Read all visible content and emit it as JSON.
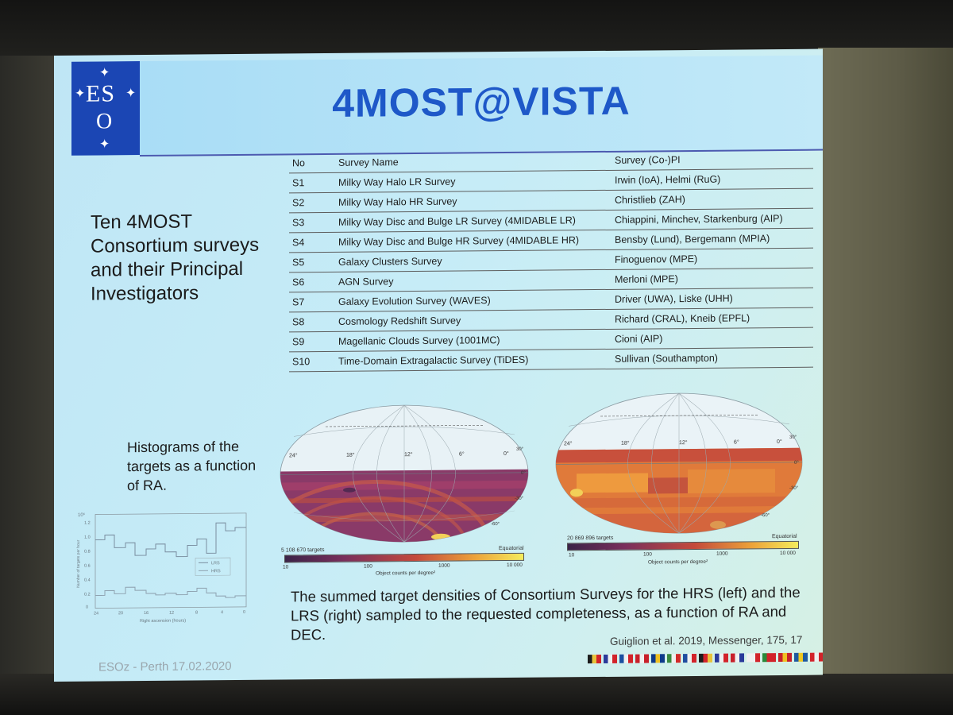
{
  "slide": {
    "title": "4MOST@VISTA",
    "logo": {
      "text_top": "ES",
      "text_bottom": "O"
    },
    "left_heading": "Ten 4MOST Consortium surveys and their Principal Investigators",
    "hist_caption": "Histograms of the targets as a function of RA.",
    "table": {
      "headers": [
        "No",
        "Survey Name",
        "Survey (Co-)PI"
      ],
      "rows": [
        [
          "S1",
          "Milky Way Halo LR Survey",
          "Irwin (IoA), Helmi (RuG)"
        ],
        [
          "S2",
          "Milky Way Halo HR Survey",
          "Christlieb (ZAH)"
        ],
        [
          "S3",
          "Milky Way Disc and Bulge LR Survey (4MIDABLE LR)",
          "Chiappini, Minchev, Starkenburg (AIP)"
        ],
        [
          "S4",
          "Milky Way Disc and Bulge HR Survey (4MIDABLE HR)",
          "Bensby (Lund), Bergemann (MPIA)"
        ],
        [
          "S5",
          "Galaxy Clusters Survey",
          "Finoguenov (MPE)"
        ],
        [
          "S6",
          "AGN Survey",
          "Merloni (MPE)"
        ],
        [
          "S7",
          "Galaxy Evolution Survey (WAVES)",
          "Driver (UWA), Liske (UHH)"
        ],
        [
          "S8",
          "Cosmology Redshift Survey",
          "Richard (CRAL), Kneib (EPFL)"
        ],
        [
          "S9",
          "Magellanic Clouds Survey (1001MC)",
          "Cioni (AIP)"
        ],
        [
          "S10",
          "Time-Domain Extragalactic Survey (TiDES)",
          "Sullivan (Southampton)"
        ]
      ]
    },
    "sky_maps": [
      {
        "targets": "5 108 670 targets",
        "frame": "Equatorial",
        "ra_labels": [
          "24°",
          "18°",
          "12°",
          "6°",
          "0°"
        ],
        "dec_labels": [
          "30°",
          "0°",
          "-30°",
          "-60°"
        ],
        "colorbar_ticks": [
          "10",
          "100",
          "1000",
          "10 000"
        ],
        "colorbar_label": "Object counts per degree²"
      },
      {
        "targets": "20 869 896 targets",
        "frame": "Equatorial",
        "ra_labels": [
          "24°",
          "18°",
          "12°",
          "6°",
          "0°"
        ],
        "dec_labels": [
          "30°",
          "0°",
          "-30°",
          "-60°"
        ],
        "colorbar_ticks": [
          "10",
          "100",
          "1000",
          "10 000"
        ],
        "colorbar_label": "Object counts per degree²"
      }
    ],
    "histogram": {
      "ylabel": "Number of targets per hour",
      "xlabel": "Right ascension (hours)",
      "y_ticks": [
        "0",
        "0.2",
        "0.4",
        "0.6",
        "0.8",
        "1.0",
        "1.2"
      ],
      "y_exponent": "10⁶",
      "x_ticks": [
        "24",
        "20",
        "16",
        "12",
        "8",
        "4",
        "0"
      ],
      "legend": [
        "LRS",
        "HRS"
      ]
    },
    "bottom_caption": "The summed target densities of Consortium Surveys for the HRS (left) and the LRS (right) sampled to the requested completeness, as a function of RA and DEC.",
    "citation": "Guiglion et al. 2019, Messenger, 175, 17",
    "footer": "ESOz - Perth 17.02.2020",
    "flags": [
      "#1d1d1d|#e8c23a|#d2232a",
      "#2a3a9a|#f0f0f0|#d2232a",
      "#1b4fa0|#f0f0f0|#d2232a",
      "#c8202a|#f0f0f0|#c8202a",
      "#0f3a8a|#f0c020|#0f3a8a",
      "#3a8a40|#f0f0f0|#d22a2a",
      "#1f4ea0|#f0f0f0|#d2232a",
      "#1d1d1d|#d2232a|#e8c23a",
      "#2a3a9a|#f0f0f0|#d2232a",
      "#c8202a|#f0f0f0|#2a3a9a",
      "#f0f0f0|#f0f0f0|#d2232a",
      "#2a8a3a|#d2232a|#d2232a",
      "#c8202a|#f0c020|#c8202a",
      "#1f5aa0|#f0c820|#1f5aa0",
      "#d2232a|#f0f0f0|#d2232a",
      "#2a3a9a|#f0f0f0|#c8202a",
      "#f0f0f0|#2a3a9a|#d2232a"
    ]
  }
}
